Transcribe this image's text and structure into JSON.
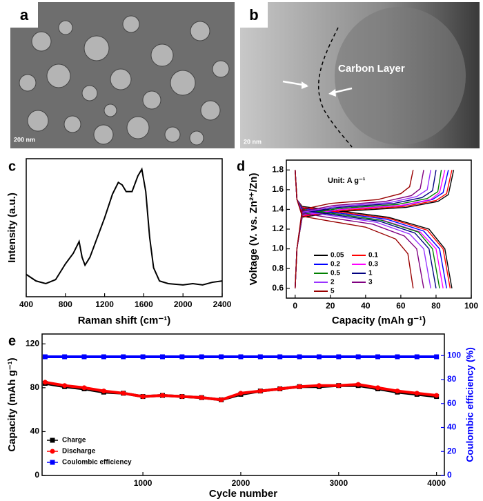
{
  "images": [
    {
      "label": "a",
      "scale": "200 nm"
    },
    {
      "label": "b",
      "scale": "20 nm",
      "annotation": "Carbon Layer"
    }
  ],
  "chart_data": [
    {
      "type": "line",
      "label": "c",
      "xlabel": "Raman shift (cm⁻¹)",
      "ylabel": "Intensity (a.u.)",
      "x": [
        400,
        500,
        600,
        700,
        800,
        880,
        940,
        970,
        1000,
        1050,
        1100,
        1200,
        1280,
        1340,
        1380,
        1420,
        1480,
        1540,
        1580,
        1620,
        1660,
        1700,
        1760,
        1850,
        2000,
        2100,
        2200,
        2300,
        2400
      ],
      "series": [
        {
          "color": "#000000",
          "values": [
            0.17,
            0.12,
            0.1,
            0.13,
            0.25,
            0.33,
            0.42,
            0.3,
            0.24,
            0.3,
            0.4,
            0.6,
            0.78,
            0.87,
            0.85,
            0.8,
            0.8,
            0.92,
            0.97,
            0.8,
            0.45,
            0.22,
            0.12,
            0.1,
            0.09,
            0.1,
            0.09,
            0.11,
            0.12
          ]
        }
      ],
      "xlim": [
        400,
        2400
      ],
      "xticks": [
        400,
        800,
        1200,
        1600,
        2000,
        2400
      ],
      "ylim": [
        0,
        1.05
      ]
    },
    {
      "type": "profile",
      "label": "d",
      "xlabel": "Capacity (mAh g⁻¹)",
      "ylabel": "Voltage (V. vs. Zn²⁺/Zn)",
      "annotation": "Unit: A g⁻¹",
      "xlim": [
        -5,
        100
      ],
      "xticks": [
        0,
        20,
        40,
        60,
        80,
        100
      ],
      "ylim": [
        0.5,
        1.9
      ],
      "yticks": [
        0.6,
        0.8,
        {
          "value": 1,
          "label": "1.0"
        },
        1.2,
        1.4,
        1.6,
        1.8
      ],
      "series": [
        {
          "name": "0.05",
          "color": "#000000",
          "discharge": {
            "x": [
              0,
              1,
              4,
              27,
              53,
              76,
              85,
              89
            ],
            "values": [
              1.8,
              1.5,
              1.43,
              1.38,
              1.32,
              1.2,
              1.0,
              0.6
            ]
          },
          "charge": {
            "x": [
              0,
              1,
              4,
              27,
              63,
              81,
              87,
              90
            ],
            "values": [
              0.6,
              1.0,
              1.32,
              1.38,
              1.42,
              1.48,
              1.55,
              1.8
            ]
          }
        },
        {
          "name": "0.1",
          "color": "#ff0000",
          "discharge": {
            "x": [
              0,
              1,
              4,
              26,
              53,
              75,
              84,
              88
            ],
            "values": [
              1.8,
              1.5,
              1.42,
              1.37,
              1.31,
              1.19,
              1.0,
              0.6
            ]
          },
          "charge": {
            "x": [
              0,
              1,
              4,
              27,
              62,
              80,
              86,
              89
            ],
            "values": [
              0.6,
              1.0,
              1.33,
              1.39,
              1.43,
              1.49,
              1.56,
              1.8
            ]
          }
        },
        {
          "name": "0.2",
          "color": "#0000ff",
          "discharge": {
            "x": [
              0,
              1,
              4,
              26,
              52,
              73,
              82,
              86
            ],
            "values": [
              1.8,
              1.5,
              1.41,
              1.36,
              1.3,
              1.18,
              1.0,
              0.6
            ]
          },
          "charge": {
            "x": [
              0,
              1,
              4,
              26,
              61,
              78,
              84,
              87
            ],
            "values": [
              0.6,
              1.0,
              1.34,
              1.4,
              1.44,
              1.5,
              1.57,
              1.8
            ]
          }
        },
        {
          "name": "0.3",
          "color": "#ff00ff",
          "discharge": {
            "x": [
              0,
              1,
              4,
              25,
              50,
              71,
              80,
              84
            ],
            "values": [
              1.8,
              1.5,
              1.4,
              1.35,
              1.29,
              1.17,
              1.0,
              0.6
            ]
          },
          "charge": {
            "x": [
              0,
              1,
              4,
              26,
              60,
              77,
              82,
              85
            ],
            "values": [
              0.6,
              1.0,
              1.34,
              1.4,
              1.44,
              1.5,
              1.57,
              1.8
            ]
          }
        },
        {
          "name": "0.5",
          "color": "#008000",
          "discharge": {
            "x": [
              0,
              1,
              4,
              25,
              49,
              70,
              78,
              82
            ],
            "values": [
              1.8,
              1.5,
              1.4,
              1.35,
              1.29,
              1.17,
              1.0,
              0.6
            ]
          },
          "charge": {
            "x": [
              0,
              1,
              4,
              25,
              58,
              75,
              81,
              83
            ],
            "values": [
              0.6,
              1.0,
              1.35,
              1.41,
              1.45,
              1.51,
              1.58,
              1.8
            ]
          }
        },
        {
          "name": "1",
          "color": "#000080",
          "discharge": {
            "x": [
              0,
              1,
              4,
              24,
              48,
              68,
              76,
              80
            ],
            "values": [
              1.8,
              1.5,
              1.39,
              1.34,
              1.28,
              1.16,
              1.0,
              0.6
            ]
          },
          "charge": {
            "x": [
              0,
              1,
              4,
              24,
              56,
              72,
              78,
              80
            ],
            "values": [
              0.6,
              1.0,
              1.36,
              1.42,
              1.46,
              1.52,
              1.59,
              1.8
            ]
          }
        },
        {
          "name": "2",
          "color": "#9933ff",
          "discharge": {
            "x": [
              0,
              1,
              4,
              23,
              46,
              65,
              73,
              77
            ],
            "values": [
              1.8,
              1.5,
              1.38,
              1.33,
              1.27,
              1.15,
              1.0,
              0.6
            ]
          },
          "charge": {
            "x": [
              0,
              1,
              4,
              23,
              54,
              69,
              75,
              77
            ],
            "values": [
              0.6,
              1.0,
              1.37,
              1.43,
              1.47,
              1.53,
              1.6,
              1.8
            ]
          }
        },
        {
          "name": "3",
          "color": "#800080",
          "discharge": {
            "x": [
              0,
              1,
              4,
              22,
              44,
              62,
              69,
              73
            ],
            "values": [
              1.8,
              1.5,
              1.36,
              1.31,
              1.25,
              1.13,
              1.0,
              0.6
            ]
          },
          "charge": {
            "x": [
              0,
              1,
              4,
              22,
              51,
              66,
              71,
              73
            ],
            "values": [
              0.6,
              1.0,
              1.38,
              1.44,
              1.48,
              1.54,
              1.61,
              1.8
            ]
          }
        },
        {
          "name": "5",
          "color": "#990000",
          "discharge": {
            "x": [
              0,
              1,
              4,
              20,
              40,
              57,
              64,
              67
            ],
            "values": [
              1.8,
              1.5,
              1.33,
              1.28,
              1.22,
              1.1,
              0.95,
              0.6
            ]
          },
          "charge": {
            "x": [
              0,
              1,
              4,
              20,
              47,
              60,
              65,
              67
            ],
            "values": [
              0.6,
              1.0,
              1.4,
              1.46,
              1.5,
              1.56,
              1.63,
              1.8
            ]
          }
        }
      ]
    },
    {
      "type": "cycling",
      "label": "e",
      "xlabel": "Cycle number",
      "ylabel": "Capacity (mAh g⁻¹)",
      "y2label": "Coulombic efficiency (%)",
      "x": [
        1,
        200,
        400,
        600,
        800,
        1000,
        1200,
        1400,
        1600,
        1800,
        2000,
        2200,
        2400,
        2600,
        2800,
        3000,
        3200,
        3400,
        3600,
        3800,
        4000
      ],
      "xlim": [
        -30,
        4080
      ],
      "xticks": [
        1000,
        2000,
        3000,
        4000
      ],
      "ylim": [
        0,
        129
      ],
      "yticks": [
        0,
        40,
        80,
        120
      ],
      "y2lim": [
        0,
        118
      ],
      "y2ticks": [
        0,
        20,
        40,
        60,
        80,
        100
      ],
      "series": [
        {
          "name": "Charge",
          "color": "#000000",
          "marker": "square",
          "values": [
            84,
            81,
            79,
            76,
            75,
            72,
            73,
            72,
            71,
            69,
            74,
            77,
            79,
            81,
            81,
            82,
            82,
            79,
            76,
            74,
            72
          ]
        },
        {
          "name": "Discharge",
          "color": "#ff0000",
          "marker": "circle",
          "values": [
            85,
            82,
            80,
            77,
            75,
            72,
            73,
            72,
            71,
            69,
            75,
            77,
            79,
            81,
            82,
            82,
            83,
            80,
            77,
            75,
            73
          ]
        },
        {
          "name": "Coulombic efficiency",
          "color": "#0000ff",
          "marker": "square",
          "axis": "y2",
          "values": [
            99,
            99,
            99,
            99,
            99,
            99,
            99,
            99,
            99,
            99,
            99,
            99,
            99,
            99,
            99,
            99,
            99,
            99,
            99,
            99,
            99
          ]
        }
      ]
    }
  ]
}
